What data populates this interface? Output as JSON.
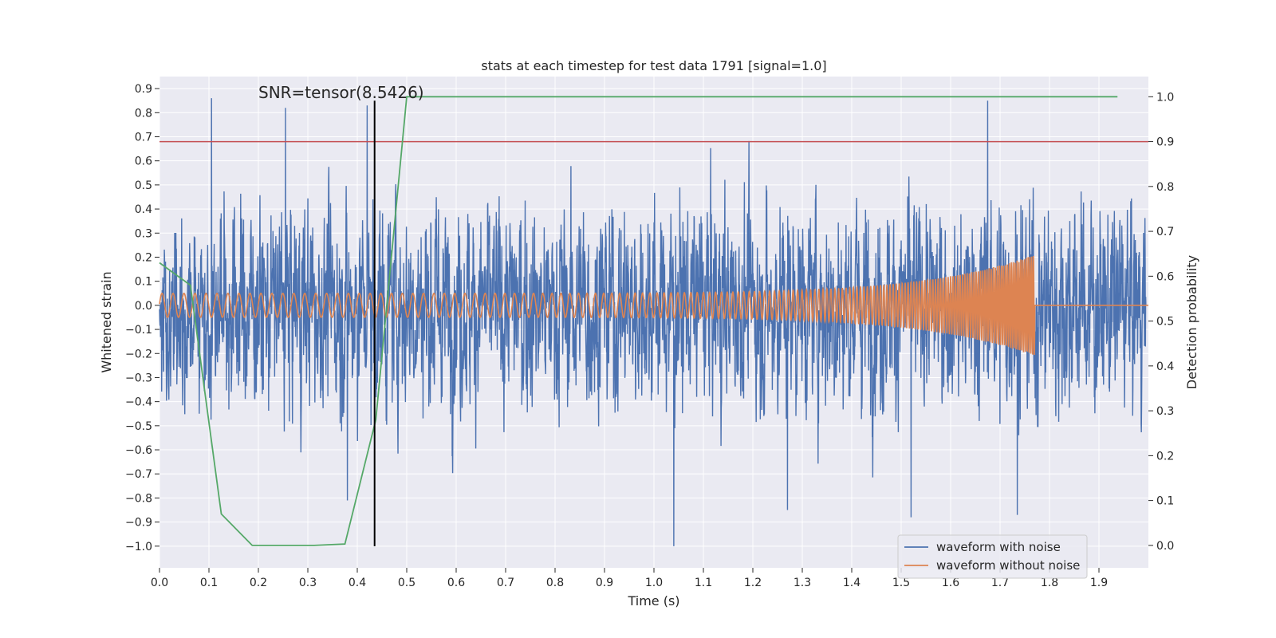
{
  "chart_data": {
    "type": "line",
    "title": "stats at each timestep for test data 1791 [signal=1.0]",
    "xlabel": "Time (s)",
    "ylabel": "Whitened strain",
    "y2label": "Detection probability",
    "xlim": [
      0.0,
      2.0
    ],
    "ylim": [
      -1.09,
      0.95
    ],
    "y2lim": [
      -0.05,
      1.045
    ],
    "grid": true,
    "x_ticks": [
      0.0,
      0.1,
      0.2,
      0.3,
      0.4,
      0.5,
      0.6,
      0.7,
      0.8,
      0.9,
      1.0,
      1.1,
      1.2,
      1.3,
      1.4,
      1.5,
      1.6,
      1.7,
      1.8,
      1.9
    ],
    "x_tick_labels": [
      "0.0",
      "0.1",
      "0.2",
      "0.3",
      "0.4",
      "0.5",
      "0.6",
      "0.7",
      "0.8",
      "0.9",
      "1.0",
      "1.1",
      "1.2",
      "1.3",
      "1.4",
      "1.5",
      "1.6",
      "1.7",
      "1.8",
      "1.9"
    ],
    "y_ticks": [
      0.9,
      0.8,
      0.7,
      0.6,
      0.5,
      0.4,
      0.3,
      0.2,
      0.1,
      0.0,
      -0.1,
      -0.2,
      -0.3,
      -0.4,
      -0.5,
      -0.6,
      -0.7,
      -0.8,
      -0.9,
      -1.0
    ],
    "y_tick_labels": [
      "0.9",
      "0.8",
      "0.7",
      "0.6",
      "0.5",
      "0.4",
      "0.3",
      "0.2",
      "0.1",
      "0.0",
      "−0.1",
      "−0.2",
      "−0.3",
      "−0.4",
      "−0.5",
      "−0.6",
      "−0.7",
      "−0.8",
      "−0.9",
      "−1.0"
    ],
    "y2_ticks": [
      1.0,
      0.9,
      0.8,
      0.7,
      0.6,
      0.5,
      0.4,
      0.3,
      0.2,
      0.1,
      0.0
    ],
    "y2_tick_labels": [
      "1.0",
      "0.9",
      "0.8",
      "0.7",
      "0.6",
      "0.5",
      "0.4",
      "0.3",
      "0.2",
      "0.1",
      "0.0"
    ],
    "annotation": {
      "text": "SNR=tensor(8.5426)",
      "x": 0.2,
      "y": 0.86
    },
    "vline": {
      "x": 0.435,
      "y_range": [
        -1.0,
        0.85
      ],
      "color": "#000000"
    },
    "threshold": {
      "value": 0.9,
      "axis": "y2",
      "color": "#c44e52"
    },
    "series": [
      {
        "name": "waveform with noise",
        "axis": "y1",
        "color": "#4c72b0",
        "kind": "noise",
        "x_range": [
          0.0,
          1.995
        ],
        "amplitude_std": 0.3,
        "min": -1.0,
        "max": 0.86,
        "peaks": [
          {
            "x": 0.105,
            "y": 0.86
          },
          {
            "x": 0.42,
            "y": 0.83
          },
          {
            "x": 0.255,
            "y": 0.82
          },
          {
            "x": 1.675,
            "y": 0.85
          },
          {
            "x": 1.04,
            "y": -1.0
          },
          {
            "x": 1.52,
            "y": -0.88
          },
          {
            "x": 1.735,
            "y": -0.87
          },
          {
            "x": 1.27,
            "y": -0.85
          },
          {
            "x": 0.38,
            "y": -0.81
          }
        ]
      },
      {
        "name": "waveform without noise",
        "axis": "y1",
        "color": "#dd8452",
        "kind": "chirp",
        "x_range": [
          0.0,
          2.0
        ],
        "merger_time": 1.77,
        "start_amplitude": 0.05,
        "peak_amplitude": 0.21,
        "start_frequency_hz": 45,
        "end_frequency_hz": 280
      },
      {
        "name": "detection probability",
        "axis": "y2",
        "color": "#55a868",
        "x": [
          0.0,
          0.0625,
          0.125,
          0.1875,
          0.25,
          0.3125,
          0.375,
          0.4375,
          0.5,
          0.5625,
          1.9375
        ],
        "values": [
          0.63,
          0.58,
          0.07,
          0.0,
          0.0,
          0.0,
          0.003,
          0.28,
          1.0,
          1.0,
          1.0
        ]
      }
    ],
    "legend": {
      "position": "lower-right",
      "entries": [
        {
          "label": "waveform with noise",
          "color": "#4c72b0"
        },
        {
          "label": "waveform without noise",
          "color": "#dd8452"
        }
      ]
    }
  }
}
